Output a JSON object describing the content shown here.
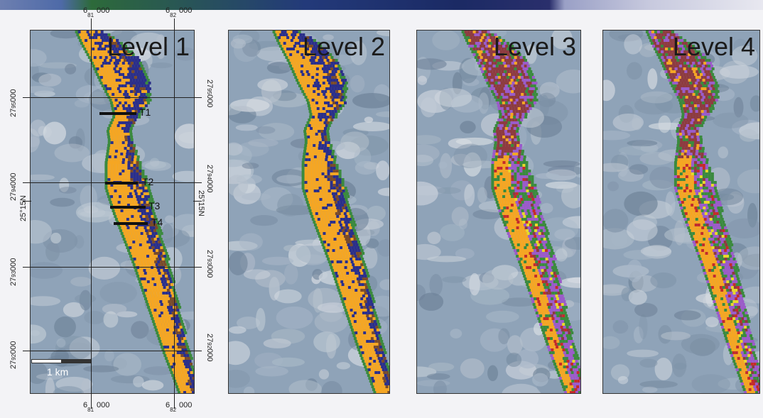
{
  "panels": [
    {
      "title": "Level 1",
      "palette": [
        "#f5a623",
        "#2b2f8a",
        "#7a4b2a",
        "#3b8a3e"
      ]
    },
    {
      "title": "Level 2",
      "palette": [
        "#f5a623",
        "#2b2f8a",
        "#7a4b2a",
        "#3b8a3e"
      ]
    },
    {
      "title": "Level 3",
      "palette": [
        "#8e3b40",
        "#9b5bc9",
        "#3b8a3e",
        "#f5a623",
        "#c42b2b",
        "#e8d82a"
      ]
    },
    {
      "title": "Level 4",
      "palette": [
        "#8e3b40",
        "#9b5bc9",
        "#3b8a3e",
        "#f5a623",
        "#c42b2b",
        "#e8d82a"
      ]
    }
  ],
  "easting_top": [
    {
      "pre": "6",
      "sub": "81",
      "post": "000"
    },
    {
      "pre": "6",
      "sub": "82",
      "post": "000"
    }
  ],
  "easting_bottom": [
    {
      "pre": "6",
      "sub": "81",
      "post": "000"
    },
    {
      "pre": "6",
      "sub": "82",
      "post": "000"
    }
  ],
  "northing_left": [
    {
      "pre": "27",
      "sub": "95",
      "post": "000"
    },
    {
      "pre": "27",
      "sub": "94",
      "post": "000"
    },
    {
      "pre": "27",
      "sub": "93",
      "post": "000"
    },
    {
      "pre": "27",
      "sub": "92",
      "post": "000"
    }
  ],
  "northing_right": [
    {
      "pre": "27",
      "sub": "95",
      "post": "000"
    },
    {
      "pre": "27",
      "sub": "94",
      "post": "000"
    },
    {
      "pre": "27",
      "sub": "93",
      "post": "000"
    },
    {
      "pre": "27",
      "sub": "92",
      "post": "000"
    }
  ],
  "latitude_label": "25°15N",
  "transects": [
    "T1",
    "T2",
    "T3",
    "T4"
  ],
  "scale_label": "1 km",
  "colors": {
    "sat_base": "#8fa3b8",
    "frame": "#333333"
  }
}
